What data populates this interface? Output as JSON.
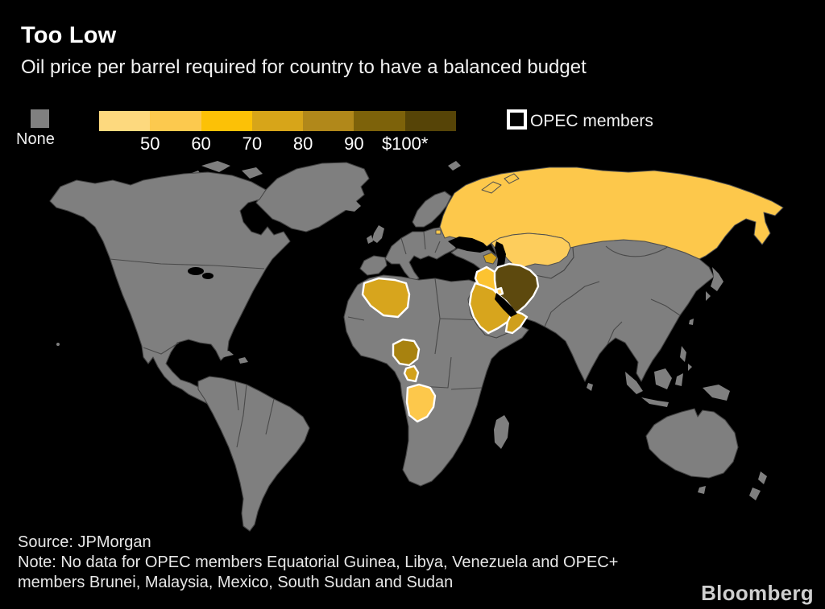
{
  "header": {
    "title": "Too Low",
    "subtitle": "Oil price per barrel required for country to have a balanced budget"
  },
  "legend": {
    "none_label": "None",
    "none_color": "#808080",
    "scale_labels": [
      "50",
      "60",
      "70",
      "80",
      "90",
      "$100*"
    ],
    "scale_colors": [
      "#fdd97e",
      "#fcc94e",
      "#fcc106",
      "#d7a519",
      "#b1881a",
      "#7d620a",
      "#564407"
    ],
    "opec_label": "OPEC members",
    "opec_outline_color": "#ffffff"
  },
  "footer": {
    "source": "Source: JPMorgan",
    "note_line1": "Note: No data for OPEC members Equatorial Guinea, Libya, Venezuela and OPEC+",
    "note_line2": "members Brunei, Malaysia, Mexico, South Sudan and Sudan",
    "brand": "Bloomberg"
  },
  "chart_data": {
    "type": "heatmap",
    "subtype": "world-choropleth",
    "title": "Too Low",
    "subtitle": "Oil price per barrel required for country to have a balanced budget",
    "legend_position": "top",
    "scale": {
      "unit": "USD per barrel",
      "buckets": [
        "<50",
        "50-60",
        "60-70",
        "70-80",
        "80-90",
        "90-100",
        "100+"
      ],
      "bucket_colors": [
        "#fdd97e",
        "#fcc94e",
        "#fcc106",
        "#d7a519",
        "#b1881a",
        "#7d620a",
        "#564407"
      ],
      "no_data_label": "None",
      "no_data_color": "#808080"
    },
    "countries": {
      "russia": {
        "name": "Russia",
        "breakeven_bucket": "50-60",
        "opec_member": false,
        "color": "#fdc84b"
      },
      "kazakhstan": {
        "name": "Kazakhstan",
        "breakeven_bucket": "50-60",
        "opec_member": false,
        "color": "#fdcd5c"
      },
      "azerbaijan": {
        "name": "Azerbaijan",
        "breakeven_bucket": "70-80",
        "opec_member": false,
        "color": "#d7a51d"
      },
      "iraq": {
        "name": "Iraq",
        "breakeven_bucket": "60-70",
        "opec_member": true,
        "color": "#fcc331"
      },
      "kuwait": {
        "name": "Kuwait",
        "breakeven_bucket": "50-60",
        "opec_member": true,
        "color": "#fdd269"
      },
      "saudi_arabia": {
        "name": "Saudi Arabia",
        "breakeven_bucket": "70-80",
        "opec_member": true,
        "color": "#d7a51d"
      },
      "uae_oman": {
        "name": "United Arab Emirates / Oman",
        "breakeven_bucket": "70-80",
        "opec_member": true,
        "color": "#cf9f1c"
      },
      "iran": {
        "name": "Iran",
        "breakeven_bucket": "100+",
        "opec_member": true,
        "color": "#5d490e"
      },
      "algeria": {
        "name": "Algeria",
        "breakeven_bucket": "70-80",
        "opec_member": true,
        "color": "#d7a51d"
      },
      "nigeria": {
        "name": "Nigeria",
        "breakeven_bucket": "80-90",
        "opec_member": true,
        "color": "#a8820f"
      },
      "gabon": {
        "name": "Gabon",
        "breakeven_bucket": "70-80",
        "opec_member": true,
        "color": "#d2a11c"
      },
      "angola": {
        "name": "Angola",
        "breakeven_bucket": "50-60",
        "opec_member": true,
        "color": "#fdc84b"
      }
    },
    "other_countries": "None (gray)"
  }
}
